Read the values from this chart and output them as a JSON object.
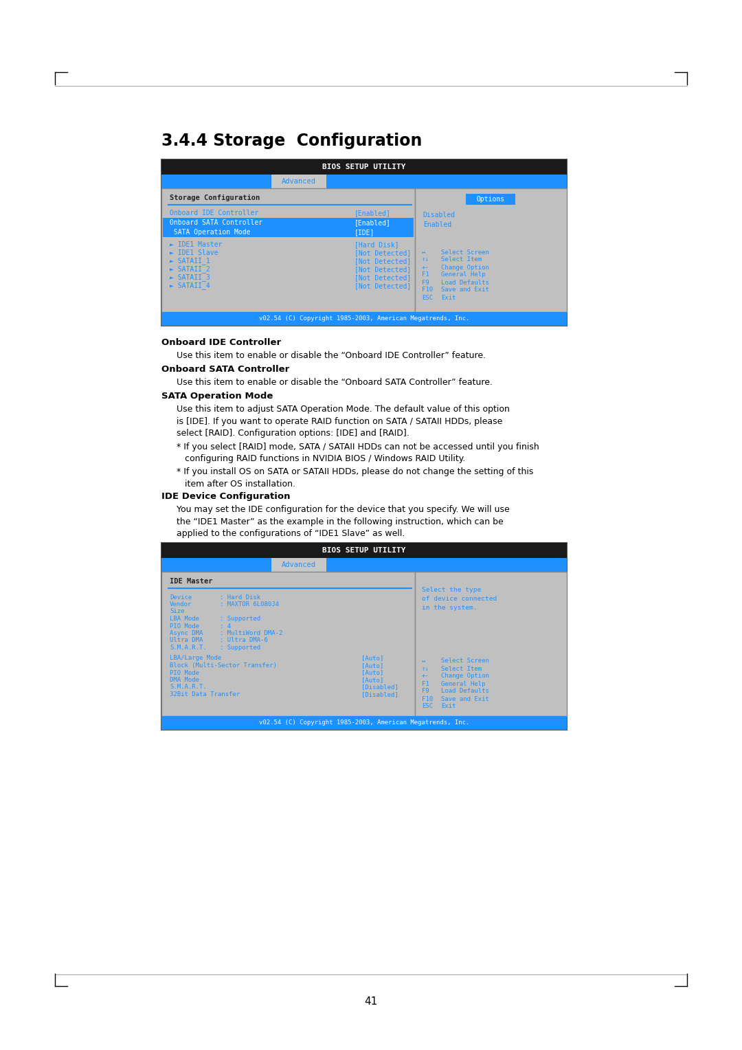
{
  "title": "3.4.4 Storage  Configuration",
  "page_number": "41",
  "bios_title": "BIOS SETUP UTILITY",
  "tab_label": "Advanced",
  "copyright": "v02.54 (C) Copyright 1985-2003, American Megatrends, Inc.",
  "screen1": {
    "section_title": "Storage Configuration",
    "left_items": [
      {
        "label": "Onboard IDE Controller",
        "value": "[Enabled]",
        "highlighted": false
      },
      {
        "label": "Onboard SATA Controller",
        "value": "[Enabled]",
        "highlighted": true
      },
      {
        "label": " SATA Operation Mode",
        "value": "[IDE]",
        "highlighted": true
      }
    ],
    "sub_items": [
      {
        "label": "► IDE1 Master",
        "value": "[Hard Disk]"
      },
      {
        "label": "► IDE1 Slave",
        "value": "[Not Detected]"
      },
      {
        "label": "► SATAII_1",
        "value": "[Not Detected]"
      },
      {
        "label": "► SATAII_2",
        "value": "[Not Detected]"
      },
      {
        "label": "► SATAII_3",
        "value": "[Not Detected]"
      },
      {
        "label": "► SATAII_4",
        "value": "[Not Detected]"
      }
    ],
    "options_title": "Options",
    "options": [
      "Disabled",
      "Enabled"
    ],
    "help_items": [
      [
        "↔",
        "Select Screen"
      ],
      [
        "↑↓",
        "Select Item"
      ],
      [
        "+-",
        "Change Option"
      ],
      [
        "F1",
        "General Help"
      ],
      [
        "F9",
        "Load Defaults"
      ],
      [
        "F10",
        "Save and Exit"
      ],
      [
        "ESC",
        "Exit"
      ]
    ]
  },
  "text_sections": [
    {
      "heading": "Onboard IDE Controller",
      "bold": true,
      "body": "Use this item to enable or disable the “Onboard IDE Controller” feature."
    },
    {
      "heading": "Onboard SATA Controller",
      "bold": true,
      "body": "Use this item to enable or disable the “Onboard SATA Controller” feature."
    },
    {
      "heading": "SATA Operation Mode",
      "bold": true,
      "body": "Use this item to adjust SATA Operation Mode. The default value of this option\nis [IDE]. If you want to operate RAID function on SATA / SATAII HDDs, please\nselect [RAID]. Configuration options: [IDE] and [RAID]."
    },
    {
      "heading": "",
      "bold": false,
      "body": "* If you select [RAID] mode, SATA / SATAII HDDs can not be accessed until you finish\n   configuring RAID functions in NVIDIA BIOS / Windows RAID Utility."
    },
    {
      "heading": "",
      "bold": false,
      "body": "* If you install OS on SATA or SATAII HDDs, please do not change the setting of this\n   item after OS installation."
    },
    {
      "heading": "IDE Device Configuration",
      "bold": true,
      "body": "You may set the IDE configuration for the device that you specify. We will use\nthe “IDE1 Master” as the example in the following instruction, which can be\napplied to the configurations of “IDE1 Slave” as well."
    }
  ],
  "screen2": {
    "section_title": "IDE Master",
    "info_items": [
      {
        "label": "Device",
        "value": ": Hard Disk"
      },
      {
        "label": "Vendor",
        "value": ": MAXTOR 6L080J4"
      },
      {
        "label": "Size",
        "value": ""
      },
      {
        "label": "LBA Mode",
        "value": ": Supported"
      },
      {
        "label": "PIO Mode",
        "value": ": 4"
      },
      {
        "label": "Async DMA",
        "value": ": MultiWord DMA-2"
      },
      {
        "label": "Ultra DMA",
        "value": ": Ultra DMA-6"
      },
      {
        "label": "S.M.A.R.T.",
        "value": ": Supported"
      }
    ],
    "config_items": [
      {
        "label": "LBA/Large Mode",
        "value": "[Auto]"
      },
      {
        "label": "Block (Multi-Sector Transfer)",
        "value": "[Auto]"
      },
      {
        "label": "PIO Mode",
        "value": "[Auto]"
      },
      {
        "label": "DMA Mode",
        "value": "[Auto]"
      },
      {
        "label": "S.M.A.R.T.",
        "value": "[Disabled]"
      },
      {
        "label": "32Bit Data Transfer",
        "value": "[Disabled]"
      }
    ],
    "right_text": "Select the type\nof device connected\nin the system.",
    "help_items": [
      [
        "↔",
        "Select Screen"
      ],
      [
        "↑↓",
        "Select Item"
      ],
      [
        "+-",
        "Change Option"
      ],
      [
        "F1",
        "General Help"
      ],
      [
        "F9",
        "Load Defaults"
      ],
      [
        "F10",
        "Save and Exit"
      ],
      [
        "ESC",
        "Exit"
      ]
    ]
  },
  "colors": {
    "bios_header_bg": "#1a1a1a",
    "bios_header_text": "#ffffff",
    "tab_bg": "#1e90ff",
    "tab_text": "#ffffff",
    "content_bg": "#c0c0c0",
    "options_btn_bg": "#1e90ff",
    "options_btn_text": "#ffffff",
    "blue_text": "#1e90ff",
    "dark_text": "#333333",
    "footer_bg": "#1e90ff",
    "footer_text": "#ffffff",
    "border_color": "#888888",
    "divider_blue": "#1e90ff",
    "highlight_row_bg": "#1e90ff"
  }
}
